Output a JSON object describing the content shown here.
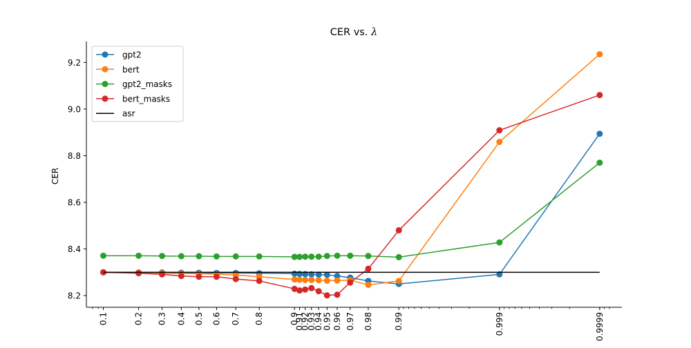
{
  "chart_data": {
    "type": "line",
    "title": "CER vs. λ",
    "title_prefix": "CER vs. ",
    "title_symbol": "λ",
    "xlabel": "",
    "ylabel": "CER",
    "x_scale": "logit",
    "x": [
      0.1,
      0.2,
      0.3,
      0.4,
      0.5,
      0.6,
      0.7,
      0.8,
      0.9,
      0.91,
      0.92,
      0.93,
      0.94,
      0.95,
      0.96,
      0.97,
      0.98,
      0.99,
      0.999,
      0.9999
    ],
    "xticks": [
      {
        "value": 0.1,
        "label": "0.1"
      },
      {
        "value": 0.2,
        "label": "0.2"
      },
      {
        "value": 0.3,
        "label": "0.3"
      },
      {
        "value": 0.4,
        "label": "0.4"
      },
      {
        "value": 0.5,
        "label": "0.5"
      },
      {
        "value": 0.6,
        "label": "0.6"
      },
      {
        "value": 0.7,
        "label": "0.7"
      },
      {
        "value": 0.8,
        "label": "0.8"
      },
      {
        "value": 0.9,
        "label": "0.9"
      },
      {
        "value": 0.91,
        "label": "0.91"
      },
      {
        "value": 0.92,
        "label": "0.92"
      },
      {
        "value": 0.93,
        "label": "0.93"
      },
      {
        "value": 0.94,
        "label": "0.94"
      },
      {
        "value": 0.95,
        "label": "0.95"
      },
      {
        "value": 0.96,
        "label": "0.96"
      },
      {
        "value": 0.97,
        "label": "0.97"
      },
      {
        "value": 0.98,
        "label": "0.98"
      },
      {
        "value": 0.99,
        "label": "0.99"
      },
      {
        "value": 0.999,
        "label": "0.999"
      },
      {
        "value": 0.9999,
        "label": "0.9999"
      }
    ],
    "yticks": [
      {
        "value": 8.2,
        "label": "8.2"
      },
      {
        "value": 8.4,
        "label": "8.4"
      },
      {
        "value": 8.6,
        "label": "8.6"
      },
      {
        "value": 8.8,
        "label": "8.8"
      },
      {
        "value": 9.0,
        "label": "9.0"
      },
      {
        "value": 9.2,
        "label": "9.2"
      }
    ],
    "ylim": [
      8.15,
      9.29
    ],
    "grid": false,
    "legend_position": "top-left",
    "series": [
      {
        "name": "gpt2",
        "color": "#1f77b4",
        "marker": "circle",
        "values": [
          8.3,
          8.299,
          8.299,
          8.298,
          8.298,
          8.297,
          8.297,
          8.296,
          8.294,
          8.293,
          8.292,
          8.291,
          8.29,
          8.289,
          8.284,
          8.277,
          8.263,
          8.25,
          8.291,
          8.894
        ]
      },
      {
        "name": "bert",
        "color": "#ff7f0e",
        "marker": "circle",
        "values": [
          8.3,
          8.298,
          8.296,
          8.295,
          8.294,
          8.292,
          8.288,
          8.281,
          8.269,
          8.268,
          8.267,
          8.267,
          8.266,
          8.264,
          8.265,
          8.266,
          8.246,
          8.263,
          8.859,
          9.235
        ]
      },
      {
        "name": "gpt2_masks",
        "color": "#2ca02c",
        "marker": "circle",
        "values": [
          8.371,
          8.371,
          8.37,
          8.369,
          8.369,
          8.368,
          8.368,
          8.368,
          8.366,
          8.366,
          8.367,
          8.367,
          8.367,
          8.37,
          8.371,
          8.371,
          8.37,
          8.365,
          8.428,
          8.77
        ]
      },
      {
        "name": "bert_masks",
        "color": "#d62728",
        "marker": "circle",
        "values": [
          8.3,
          8.296,
          8.291,
          8.284,
          8.281,
          8.281,
          8.271,
          8.263,
          8.229,
          8.222,
          8.226,
          8.232,
          8.219,
          8.201,
          8.204,
          8.256,
          8.315,
          8.48,
          8.909,
          9.06
        ]
      },
      {
        "name": "asr",
        "color": "#000000",
        "marker": "none",
        "values": [
          8.3,
          8.3,
          8.3,
          8.3,
          8.3,
          8.3,
          8.3,
          8.3,
          8.3,
          8.3,
          8.3,
          8.3,
          8.3,
          8.3,
          8.3,
          8.3,
          8.3,
          8.3,
          8.3,
          8.3
        ]
      }
    ]
  }
}
